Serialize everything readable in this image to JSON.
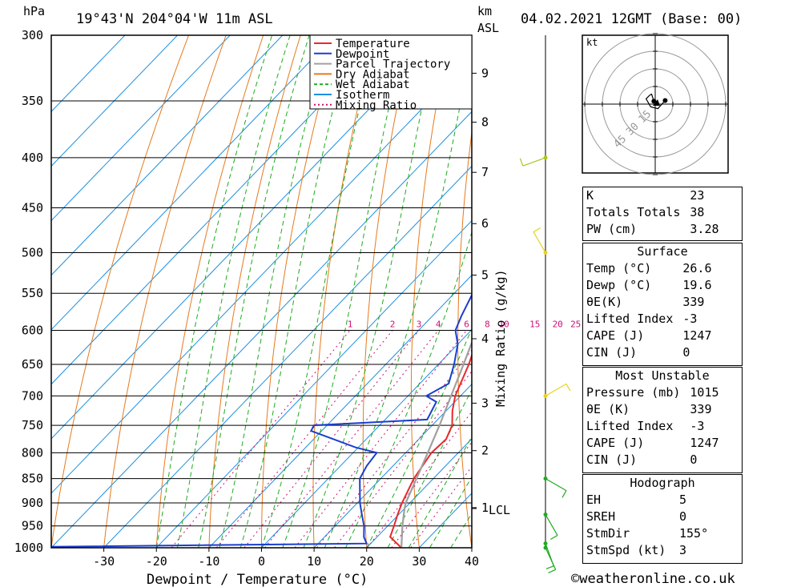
{
  "header": {
    "hpa_label": "hPa",
    "location": "19°43'N 204°04'W 11m ASL",
    "km_label": "km",
    "asl_label": "ASL",
    "datetime": "04.02.2021 12GMT (Base: 00)"
  },
  "axes": {
    "xlabel": "Dewpoint / Temperature (°C)",
    "y2label": "Mixing Ratio (g/kg)",
    "pressure_levels": [
      300,
      350,
      400,
      450,
      500,
      550,
      600,
      650,
      700,
      750,
      800,
      850,
      900,
      950,
      1000
    ],
    "temp_ticks": [
      -30,
      -20,
      -10,
      0,
      10,
      20,
      30,
      40
    ],
    "km_ticks": [
      {
        "p": 328,
        "label": "9"
      },
      {
        "p": 368,
        "label": "8"
      },
      {
        "p": 414,
        "label": "7"
      },
      {
        "p": 467,
        "label": "6"
      },
      {
        "p": 527,
        "label": "5"
      },
      {
        "p": 612,
        "label": "4"
      },
      {
        "p": 712,
        "label": "3"
      },
      {
        "p": 796,
        "label": "2"
      },
      {
        "p": 910,
        "label": "1"
      }
    ],
    "lcl_label": "LCL",
    "mixing_ratio_labels": [
      "1",
      "2",
      "3",
      "4",
      "6",
      "8",
      "10",
      "15",
      "20",
      "25"
    ]
  },
  "legend": {
    "items": [
      {
        "label": "Temperature",
        "color": "#e8282d"
      },
      {
        "label": "Dewpoint",
        "color": "#1a3ecf"
      },
      {
        "label": "Parcel Trajectory",
        "color": "#a0a0a0"
      },
      {
        "label": "Dry Adiabat",
        "color": "#e57a1e"
      },
      {
        "label": "Wet Adiabat",
        "color": "#1faa1f"
      },
      {
        "label": "Isotherm",
        "color": "#1e8fe0"
      },
      {
        "label": "Mixing Ratio",
        "color": "#cc1177"
      }
    ]
  },
  "chart_data": {
    "type": "line",
    "title": "19°43'N 204°04'W 11m ASL",
    "xlabel": "Dewpoint / Temperature (°C)",
    "ylabel": "hPa",
    "xlim": [
      -40,
      40
    ],
    "ylim": [
      1000,
      300
    ],
    "series": [
      {
        "name": "Temperature",
        "points": [
          [
            1000,
            26.6
          ],
          [
            975,
            22.5
          ],
          [
            950,
            21.2
          ],
          [
            925,
            19.8
          ],
          [
            900,
            18.5
          ],
          [
            850,
            16.3
          ],
          [
            800,
            14.9
          ],
          [
            775,
            15.2
          ],
          [
            750,
            13.8
          ],
          [
            725,
            11.2
          ],
          [
            700,
            9.0
          ],
          [
            650,
            5.8
          ],
          [
            625,
            3.8
          ],
          [
            600,
            2.0
          ],
          [
            575,
            -1.8
          ],
          [
            550,
            -3.8
          ],
          [
            525,
            -6.8
          ],
          [
            500,
            -8.8
          ],
          [
            450,
            -13.2
          ],
          [
            400,
            -18.5
          ],
          [
            380,
            -21.0
          ],
          [
            350,
            -26.5
          ],
          [
            300,
            -36.5
          ]
        ]
      },
      {
        "name": "Dewpoint",
        "points": [
          [
            1000,
            -58
          ],
          [
            990,
            19.2
          ],
          [
            975,
            17.5
          ],
          [
            950,
            15.5
          ],
          [
            925,
            13.0
          ],
          [
            900,
            10.5
          ],
          [
            850,
            6.0
          ],
          [
            825,
            5.0
          ],
          [
            800,
            4.5
          ],
          [
            790,
            -0.5
          ],
          [
            760,
            -12.0
          ],
          [
            750,
            -12.5
          ],
          [
            740,
            8.0
          ],
          [
            710,
            6.5
          ],
          [
            700,
            3.5
          ],
          [
            680,
            5.5
          ],
          [
            650,
            3.0
          ],
          [
            620,
            0.0
          ],
          [
            600,
            -3.0
          ],
          [
            580,
            -4.5
          ],
          [
            550,
            -6.5
          ],
          [
            525,
            -7.0
          ],
          [
            510,
            -9.0
          ],
          [
            500,
            -12.0
          ],
          [
            480,
            -11.0
          ],
          [
            460,
            -9.0
          ],
          [
            445,
            -10.0
          ],
          [
            430,
            -14.0
          ],
          [
            420,
            -15.0
          ],
          [
            400,
            -18.0
          ],
          [
            385,
            -23.5
          ],
          [
            370,
            -28.0
          ],
          [
            350,
            -31.0
          ],
          [
            320,
            -37.0
          ],
          [
            310,
            -38.0
          ],
          [
            300,
            -38.5
          ]
        ]
      },
      {
        "name": "Parcel Trajectory",
        "points": [
          [
            1000,
            26.6
          ],
          [
            950,
            22.8
          ],
          [
            912,
            20.0
          ],
          [
            900,
            19.2
          ],
          [
            850,
            16.8
          ],
          [
            800,
            14.2
          ],
          [
            750,
            11.4
          ],
          [
            700,
            8.2
          ],
          [
            650,
            4.8
          ],
          [
            600,
            1.0
          ],
          [
            550,
            -3.2
          ],
          [
            500,
            -8.0
          ],
          [
            450,
            -13.6
          ],
          [
            400,
            -20.0
          ],
          [
            350,
            -27.5
          ],
          [
            300,
            -37.0
          ]
        ]
      }
    ],
    "mixing_ratio_lines_gkg": [
      1,
      2,
      3,
      4,
      6,
      8,
      10,
      15,
      20,
      25
    ],
    "lcl_pressure": 912,
    "wind_barbs": [
      {
        "p": 1000,
        "dir": 155,
        "speed": 3
      },
      {
        "p": 990,
        "dir": 160,
        "speed": 10
      },
      {
        "p": 925,
        "dir": 150,
        "speed": 10
      },
      {
        "p": 850,
        "dir": 120,
        "speed": 10
      },
      {
        "p": 700,
        "dir": 60,
        "speed": 5
      },
      {
        "p": 500,
        "dir": 330,
        "speed": 5
      },
      {
        "p": 400,
        "dir": 250,
        "speed": 10
      }
    ]
  },
  "hodograph": {
    "unit_label": "kt",
    "ring_labels": [
      "15",
      "30",
      "45"
    ]
  },
  "indices": {
    "general": [
      {
        "label": "K",
        "value": "23"
      },
      {
        "label": "Totals Totals",
        "value": "38"
      },
      {
        "label": "PW (cm)",
        "value": "3.28"
      }
    ],
    "surface_title": "Surface",
    "surface": [
      {
        "label": "Temp (°C)",
        "value": "26.6"
      },
      {
        "label": "Dewp (°C)",
        "value": "19.6"
      },
      {
        "label": "θE(K)",
        "value": "339"
      },
      {
        "label": "Lifted Index",
        "value": "-3"
      },
      {
        "label": "CAPE (J)",
        "value": "1247"
      },
      {
        "label": "CIN (J)",
        "value": "0"
      }
    ],
    "mu_title": "Most Unstable",
    "most_unstable": [
      {
        "label": "Pressure (mb)",
        "value": "1015"
      },
      {
        "label": "θE (K)",
        "value": "339"
      },
      {
        "label": "Lifted Index",
        "value": "-3"
      },
      {
        "label": "CAPE (J)",
        "value": "1247"
      },
      {
        "label": "CIN (J)",
        "value": "0"
      }
    ],
    "hodo_title": "Hodograph",
    "hodo": [
      {
        "label": "EH",
        "value": "5"
      },
      {
        "label": "SREH",
        "value": "0"
      },
      {
        "label": "StmDir",
        "value": "155°"
      },
      {
        "label": "StmSpd (kt)",
        "value": "3"
      }
    ]
  },
  "footer": {
    "copyright": "©weatheronline.co.uk"
  }
}
